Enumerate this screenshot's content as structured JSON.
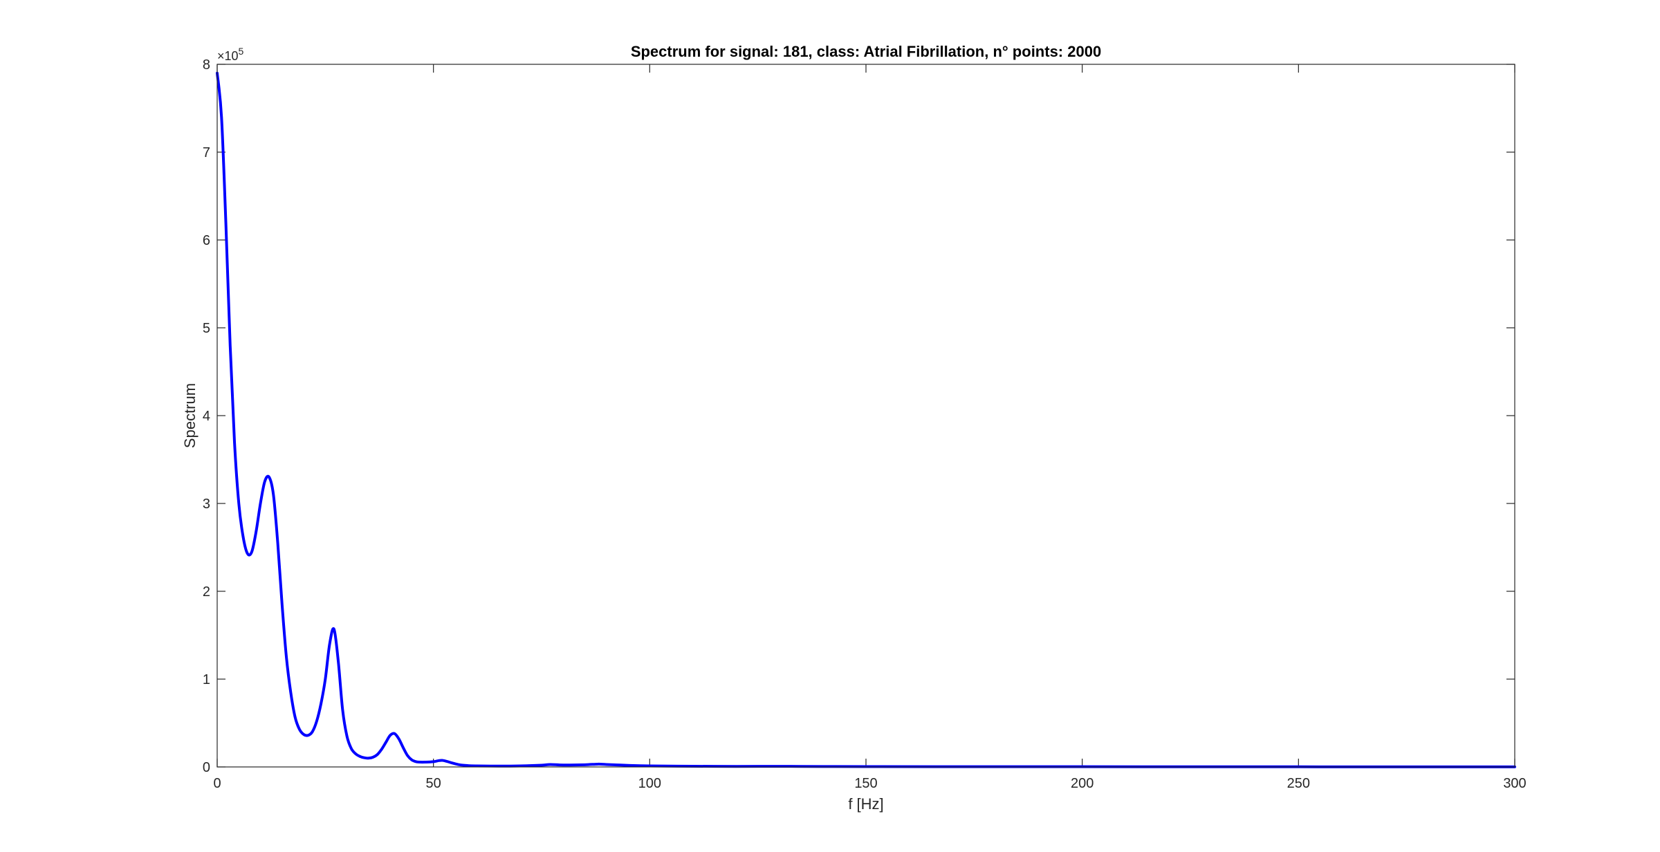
{
  "chart_data": {
    "type": "line",
    "title": "Spectrum for signal: 181, class: Atrial Fibrillation, n° points: 2000",
    "xlabel": "f [Hz]",
    "ylabel": "Spectrum",
    "xlim": [
      0,
      300
    ],
    "ylim": [
      0,
      800000
    ],
    "x_ticks": [
      0,
      50,
      100,
      150,
      200,
      250,
      300
    ],
    "y_ticks": [
      0,
      1,
      2,
      3,
      4,
      5,
      6,
      7,
      8
    ],
    "y_exponent": "5",
    "y_multiplier_text": "×10",
    "grid": false,
    "series": [
      {
        "color": "#0000ff",
        "x": [
          0,
          1,
          2,
          3,
          4,
          5,
          6,
          7,
          8,
          9,
          10,
          11,
          12,
          13,
          14,
          15,
          16,
          17,
          18,
          19,
          20,
          21,
          22,
          23,
          24,
          25,
          26,
          27,
          28,
          29,
          30,
          31,
          32,
          33,
          34,
          35,
          36,
          37,
          38,
          39,
          40,
          41,
          42,
          43,
          44,
          45,
          46,
          47,
          48,
          50,
          52,
          54,
          56,
          58,
          60,
          65,
          70,
          75,
          77,
          80,
          85,
          88,
          90,
          95,
          100,
          110,
          120,
          130,
          140,
          150,
          175,
          200,
          225,
          250,
          275,
          300
        ],
        "y": [
          790000,
          740000,
          620000,
          480000,
          370000,
          300000,
          262000,
          243000,
          245000,
          268000,
          300000,
          325000,
          330000,
          310000,
          255000,
          185000,
          125000,
          85000,
          57000,
          43000,
          37000,
          36000,
          40000,
          52000,
          72000,
          100000,
          140000,
          157000,
          120000,
          65000,
          35000,
          21000,
          15000,
          12000,
          10500,
          10000,
          11000,
          14000,
          20000,
          28000,
          36000,
          38000,
          32000,
          22000,
          13000,
          8000,
          6000,
          5500,
          5500,
          6000,
          7500,
          5000,
          2500,
          1500,
          1200,
          1000,
          1200,
          2000,
          2800,
          2200,
          2500,
          3200,
          2800,
          1800,
          1200,
          800,
          600,
          700,
          500,
          400,
          300,
          250,
          200,
          150,
          120,
          100
        ]
      }
    ]
  }
}
